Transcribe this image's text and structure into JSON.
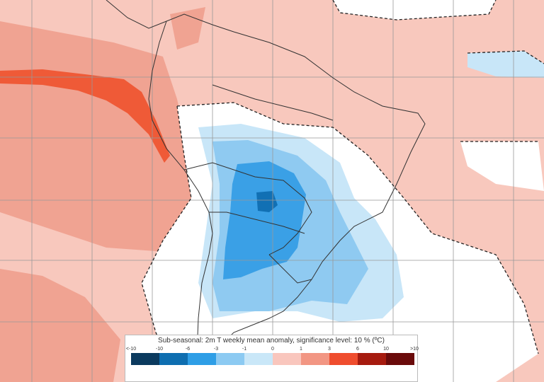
{
  "legend": {
    "title": "Sub-seasonal: 2m T weekly mean anomaly, significance level: 10 % (ºC)",
    "ticks": [
      "<-10",
      "-10",
      "-6",
      "-3",
      "-1",
      "0",
      "1",
      "3",
      "6",
      "10",
      ">10"
    ],
    "colors": [
      "#0b3a5e",
      "#0e6eb0",
      "#2e9ee6",
      "#8ccaf2",
      "#c9e7f8",
      "#f9c6bd",
      "#f29683",
      "#ef4d2e",
      "#a61b0f",
      "#6a0b0b"
    ]
  },
  "map_colors": {
    "ocean_mild_warm": "#f8c8bd",
    "warm": "#f0a392",
    "strong_warm": "#ef5a37",
    "neutral": "#ffffff",
    "mild_cold": "#c8e6f8",
    "cold": "#8fcaf1",
    "strong_cold": "#3aa0e6",
    "very_cold": "#1170b4",
    "coast": "#333333",
    "grid": "#999999"
  }
}
